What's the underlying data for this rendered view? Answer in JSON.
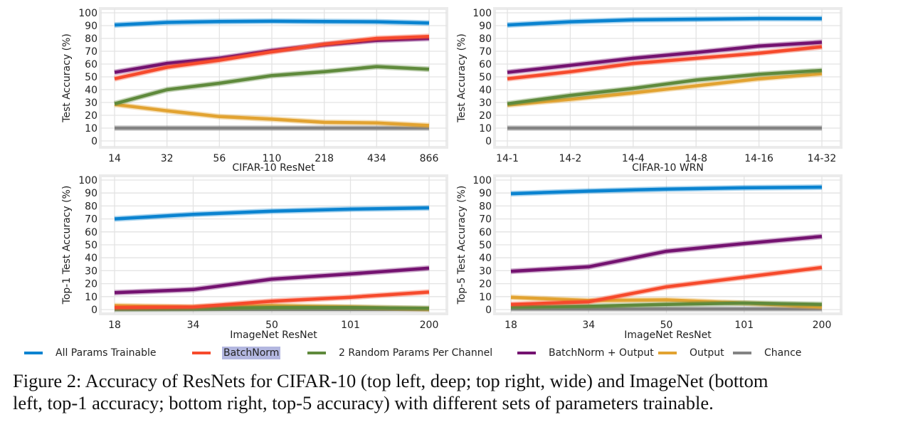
{
  "legend": [
    {
      "label": "All Params Trainable",
      "color": "#0a83d0"
    },
    {
      "label": "BatchNorm",
      "color": "#f64a2c"
    },
    {
      "label": "2 Random Params Per Channel",
      "color": "#5f8a3c"
    },
    {
      "label": "BatchNorm + Output",
      "color": "#741270"
    },
    {
      "label": "Output",
      "color": "#e2a331"
    },
    {
      "label": "Chance",
      "color": "#838383"
    }
  ],
  "caption": {
    "line1": "Figure 2: Accuracy of ResNets for CIFAR-10 (top left, deep; top right, wide) and ImageNet (bottom",
    "line2": "left, top-1 accuracy; bottom right, top-5 accuracy) with different sets of parameters trainable."
  },
  "chart_data": [
    {
      "type": "line",
      "title": "",
      "xlabel": "CIFAR-10 ResNet",
      "ylabel": "Test Accuracy (%)",
      "ylim": [
        0,
        100
      ],
      "yticks": [
        0,
        10,
        20,
        30,
        40,
        50,
        60,
        70,
        80,
        90,
        100
      ],
      "grid": true,
      "categories": [
        "14",
        "32",
        "56",
        "110",
        "218",
        "434",
        "866"
      ],
      "series": [
        {
          "name": "All Params Trainable",
          "values": [
            90.5,
            92.5,
            93.2,
            93.5,
            93.2,
            93,
            92
          ]
        },
        {
          "name": "BatchNorm",
          "values": [
            48.5,
            57.5,
            63,
            69.5,
            75.5,
            80,
            81.5
          ]
        },
        {
          "name": "2 Random Params Per Channel",
          "values": [
            29,
            40,
            45,
            51,
            54,
            58,
            56
          ]
        },
        {
          "name": "BatchNorm + Output",
          "values": [
            53.5,
            60.5,
            64.5,
            70.5,
            75,
            78.5,
            80
          ]
        },
        {
          "name": "Output",
          "values": [
            28.5,
            23.5,
            19,
            17,
            14.5,
            14,
            12
          ]
        },
        {
          "name": "Chance",
          "values": [
            10,
            10,
            10,
            10,
            10,
            10,
            10
          ]
        }
      ]
    },
    {
      "type": "line",
      "title": "",
      "xlabel": "CIFAR-10 WRN",
      "ylabel": "Test Accuracy (%)",
      "ylim": [
        0,
        100
      ],
      "yticks": [
        0,
        10,
        20,
        30,
        40,
        50,
        60,
        70,
        80,
        90,
        100
      ],
      "grid": true,
      "categories": [
        "14-1",
        "14-2",
        "14-4",
        "14-8",
        "14-16",
        "14-32"
      ],
      "series": [
        {
          "name": "All Params Trainable",
          "values": [
            90.5,
            93,
            94.5,
            95,
            95.5,
            95.5
          ]
        },
        {
          "name": "BatchNorm",
          "values": [
            48.5,
            54,
            60.5,
            64.5,
            68.5,
            73.5
          ]
        },
        {
          "name": "2 Random Params Per Channel",
          "values": [
            29,
            35.5,
            41,
            47.5,
            52,
            55
          ]
        },
        {
          "name": "BatchNorm + Output",
          "values": [
            53.5,
            59,
            64.5,
            69,
            74,
            77
          ]
        },
        {
          "name": "Output",
          "values": [
            28,
            32.5,
            37.5,
            43,
            48.5,
            52.5
          ]
        },
        {
          "name": "Chance",
          "values": [
            10,
            10,
            10,
            10,
            10,
            10
          ]
        }
      ]
    },
    {
      "type": "line",
      "title": "",
      "xlabel": "ImageNet ResNet",
      "ylabel": "Top-1 Test Accuracy (%)",
      "ylim": [
        0,
        100
      ],
      "yticks": [
        0,
        10,
        20,
        30,
        40,
        50,
        60,
        70,
        80,
        90,
        100
      ],
      "grid": true,
      "categories": [
        "18",
        "34",
        "50",
        "101",
        "200"
      ],
      "series": [
        {
          "name": "All Params Trainable",
          "values": [
            70,
            73.5,
            76,
            77.5,
            78.5
          ]
        },
        {
          "name": "BatchNorm",
          "values": [
            1.5,
            2,
            6.5,
            9.5,
            13.5
          ]
        },
        {
          "name": "2 Random Params Per Channel",
          "values": [
            0.5,
            0.8,
            1.5,
            1.5,
            1
          ]
        },
        {
          "name": "BatchNorm + Output",
          "values": [
            13,
            15.5,
            23.5,
            27.5,
            32
          ]
        },
        {
          "name": "Output",
          "values": [
            3,
            2,
            3,
            2,
            0.5
          ]
        },
        {
          "name": "Chance",
          "values": [
            0.1,
            0.1,
            0.1,
            0.1,
            0.1
          ]
        }
      ]
    },
    {
      "type": "line",
      "title": "",
      "xlabel": "ImageNet ResNet",
      "ylabel": "Top-5 Test Accuracy (%)",
      "ylim": [
        0,
        100
      ],
      "yticks": [
        0,
        10,
        20,
        30,
        40,
        50,
        60,
        70,
        80,
        90,
        100
      ],
      "grid": true,
      "categories": [
        "18",
        "34",
        "50",
        "101",
        "200"
      ],
      "series": [
        {
          "name": "All Params Trainable",
          "values": [
            89.5,
            91.5,
            93,
            94,
            94.5
          ]
        },
        {
          "name": "BatchNorm",
          "values": [
            4,
            6,
            17.5,
            25,
            32.5
          ]
        },
        {
          "name": "2 Random Params Per Channel",
          "values": [
            2,
            2.5,
            4,
            5,
            4
          ]
        },
        {
          "name": "BatchNorm + Output",
          "values": [
            29.5,
            33,
            45,
            51,
            56.5
          ]
        },
        {
          "name": "Output",
          "values": [
            9.5,
            7,
            7.5,
            5,
            2
          ]
        },
        {
          "name": "Chance",
          "values": [
            0.5,
            0.5,
            0.5,
            0.5,
            0.5
          ]
        }
      ]
    }
  ]
}
